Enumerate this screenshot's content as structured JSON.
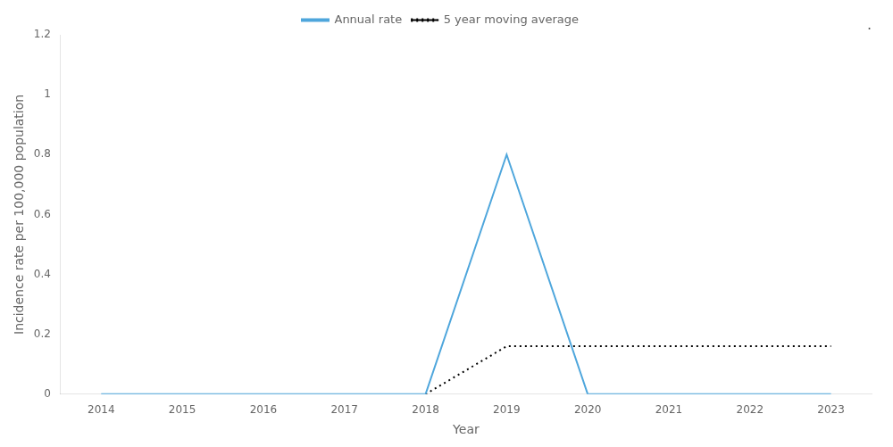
{
  "chart_data": {
    "type": "line",
    "x": [
      2014,
      2015,
      2016,
      2017,
      2018,
      2019,
      2020,
      2021,
      2022,
      2023
    ],
    "series": [
      {
        "name": "Annual rate",
        "color": "#4EA6DC",
        "line_style": "solid",
        "values": [
          0,
          0,
          0,
          0,
          0,
          0.8,
          0,
          0,
          0,
          0
        ]
      },
      {
        "name": "5 year moving average",
        "color": "#000000",
        "line_style": "dotted",
        "values": [
          null,
          null,
          null,
          null,
          0.0,
          0.16,
          0.16,
          0.16,
          0.16,
          0.16
        ]
      }
    ],
    "xlabel": "Year",
    "ylabel": "Incidence rate per 100,000 population",
    "xlim": [
      2013.5,
      2023.5
    ],
    "xticks": [
      2014,
      2015,
      2016,
      2017,
      2018,
      2019,
      2020,
      2021,
      2022,
      2023
    ],
    "ylim": [
      0,
      1.2
    ],
    "yticks": [
      0,
      0.2,
      0.4,
      0.6,
      0.8,
      1,
      1.2
    ],
    "grid": false,
    "legend": "top",
    "annotation": "."
  }
}
